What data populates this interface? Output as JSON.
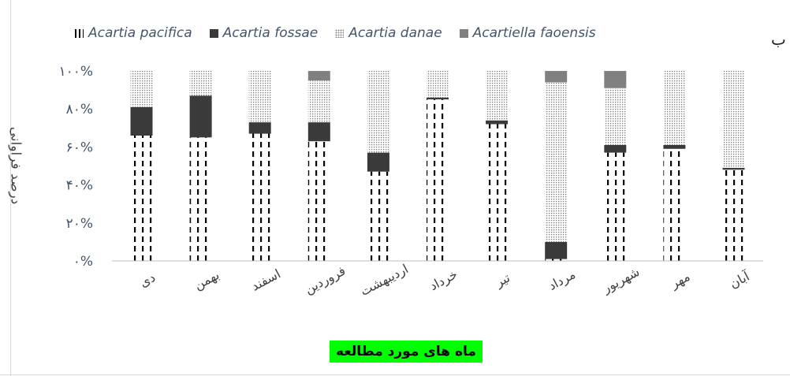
{
  "panel_label": "ب",
  "chart_data": {
    "type": "bar",
    "stacked": true,
    "xlabel": "ماه های مورد مطالعه",
    "ylabel": "درصد فراوانی",
    "ylim": [
      0,
      100
    ],
    "yticks": [
      "۰%",
      "۲۰%",
      "۴۰%",
      "۶۰%",
      "۸۰%",
      "۱۰۰%"
    ],
    "legend_position": "top",
    "grid": false,
    "categories": [
      "دی",
      "بهمن",
      "اسفند",
      "فروردین",
      "اردیبهشت",
      "خرداد",
      "تیر",
      "مرداد",
      "شهریور",
      "مهر",
      "آبان"
    ],
    "series": [
      {
        "name": "Acartia pacifica",
        "color": "#000000",
        "pattern": "dashed-vertical",
        "values": [
          66,
          65,
          67,
          63,
          47,
          85,
          72,
          1,
          57,
          59,
          48
        ]
      },
      {
        "name": "Acartia fossae",
        "color": "#3a3a3a",
        "pattern": "solid",
        "values": [
          15,
          22,
          6,
          10,
          10,
          1,
          2,
          9,
          4,
          2,
          1
        ]
      },
      {
        "name": "Acartia danae",
        "color": "#9a9a9a",
        "pattern": "dotted",
        "values": [
          19,
          13,
          27,
          22,
          43,
          14,
          26,
          84,
          30,
          39,
          51
        ]
      },
      {
        "name": "Acartiella faoensis",
        "color": "#808080",
        "pattern": "solid",
        "values": [
          0,
          0,
          0,
          5,
          0,
          0,
          0,
          6,
          9,
          0,
          0
        ]
      }
    ]
  }
}
